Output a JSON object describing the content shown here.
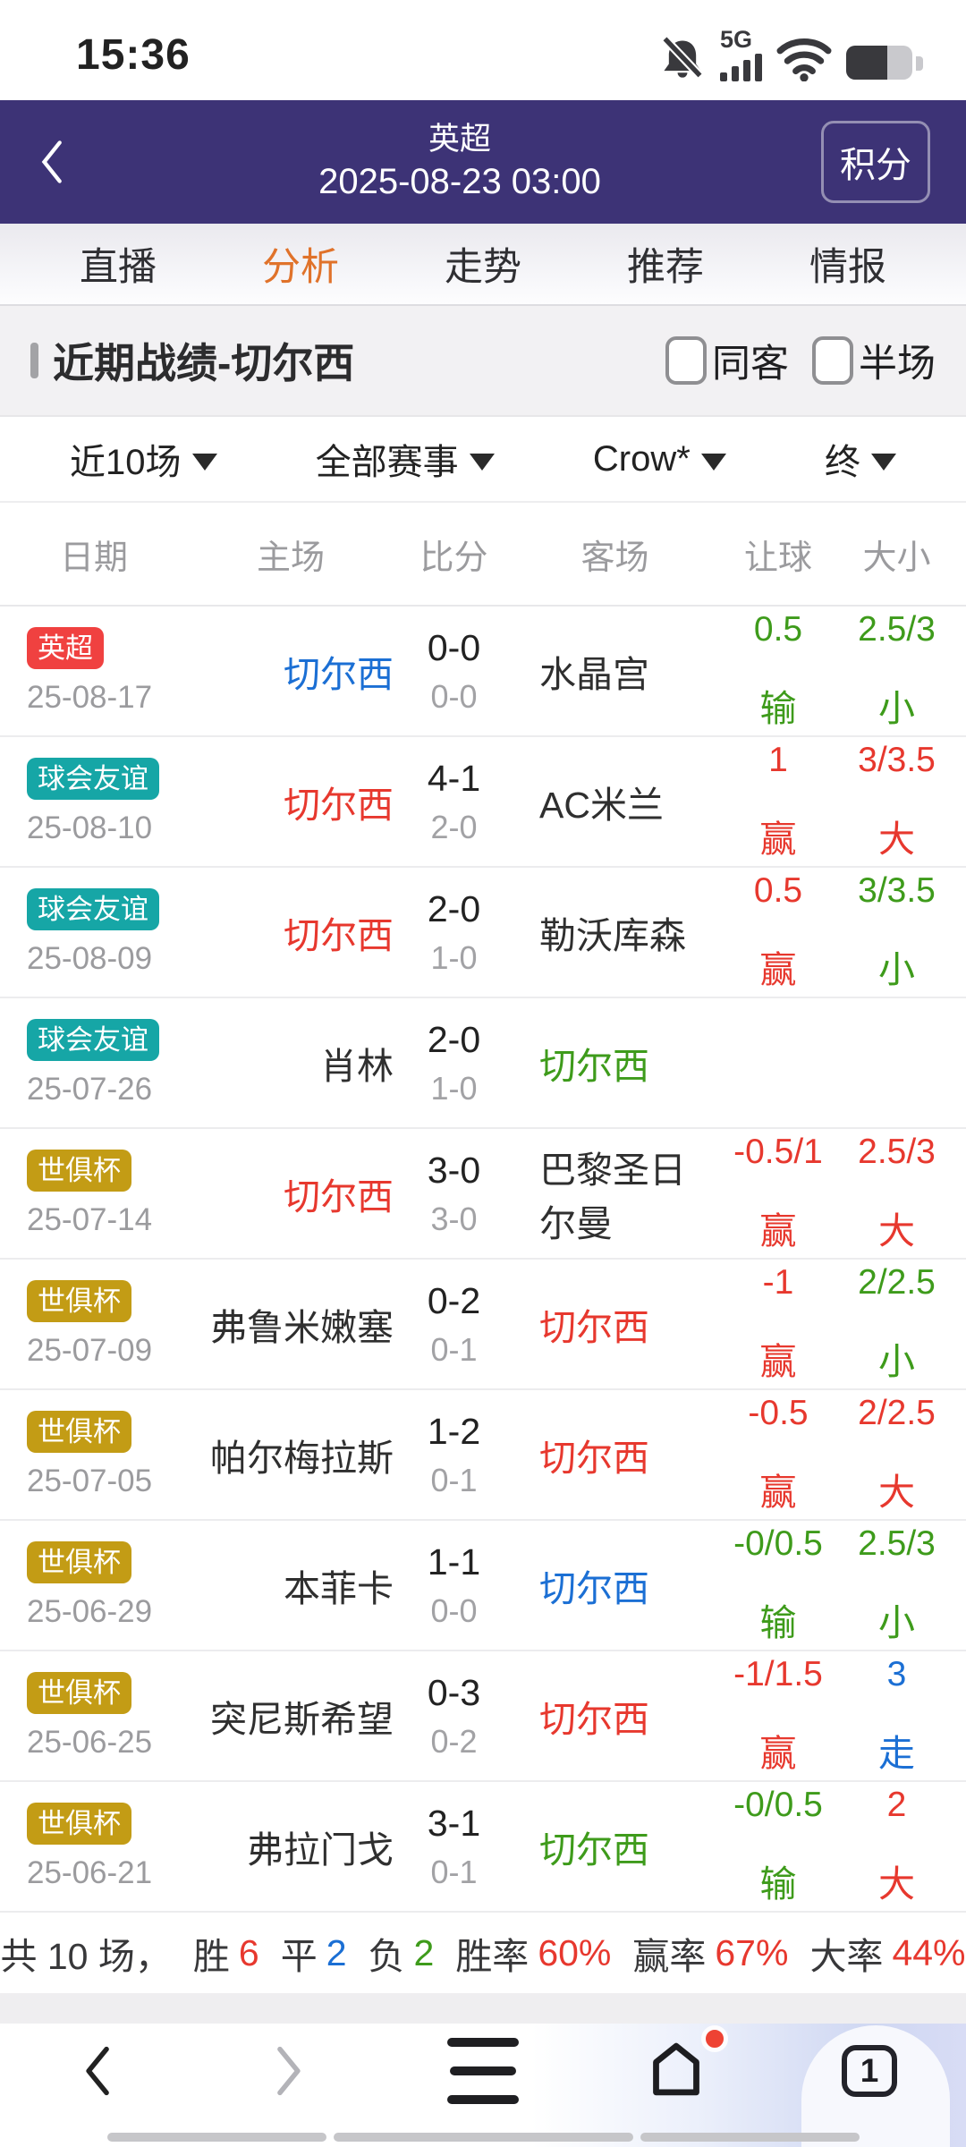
{
  "colors": {
    "red": "#e7382e",
    "blue": "#1b6fd4",
    "green": "#3e9b1b",
    "dark": "#2f2f2f",
    "grey": "#9b9b9e",
    "teal": "#16a6a6",
    "gold": "#c39c15",
    "badge_red": "#f04140",
    "accent_orange": "#e0722a",
    "header_purple": "#3d3376"
  },
  "status_bar": {
    "time": "15:36",
    "network_label": "5G"
  },
  "header": {
    "title": "英超",
    "datetime": "2025-08-23 03:00",
    "standings_button": "积分"
  },
  "tabs": {
    "items": [
      "直播",
      "分析",
      "走势",
      "推荐",
      "情报"
    ],
    "active_index": 1
  },
  "section": {
    "title": "近期战绩-切尔西",
    "checkbox_labels": [
      "同客",
      "半场"
    ]
  },
  "filters": [
    "近10场",
    "全部赛事",
    "Crow*",
    "终"
  ],
  "table": {
    "headers": [
      "日期",
      "主场",
      "比分",
      "客场",
      "让球",
      "大小"
    ],
    "rows": [
      {
        "league": "英超",
        "league_color": "badge_red",
        "date": "25-08-17",
        "home": "切尔西",
        "home_color": "blue",
        "score": "0-0",
        "half_score": "0-0",
        "away": "水晶宫",
        "away_color": "dark",
        "handicap": "0.5",
        "handicap_result": "输",
        "handicap_color": "green",
        "ou": "2.5/3",
        "ou_result": "小",
        "ou_color": "green"
      },
      {
        "league": "球会友谊",
        "league_color": "teal",
        "date": "25-08-10",
        "home": "切尔西",
        "home_color": "red",
        "score": "4-1",
        "half_score": "2-0",
        "away": "AC米兰",
        "away_color": "dark",
        "handicap": "1",
        "handicap_result": "赢",
        "handicap_color": "red",
        "ou": "3/3.5",
        "ou_result": "大",
        "ou_color": "red"
      },
      {
        "league": "球会友谊",
        "league_color": "teal",
        "date": "25-08-09",
        "home": "切尔西",
        "home_color": "red",
        "score": "2-0",
        "half_score": "1-0",
        "away": "勒沃库森",
        "away_color": "dark",
        "handicap": "0.5",
        "handicap_result": "赢",
        "handicap_color": "red",
        "ou": "3/3.5",
        "ou_result": "小",
        "ou_color": "green"
      },
      {
        "league": "球会友谊",
        "league_color": "teal",
        "date": "25-07-26",
        "home": "肖林",
        "home_color": "dark",
        "score": "2-0",
        "half_score": "1-0",
        "away": "切尔西",
        "away_color": "green",
        "handicap": "",
        "handicap_result": "",
        "handicap_color": "dark",
        "ou": "",
        "ou_result": "",
        "ou_color": "dark"
      },
      {
        "league": "世俱杯",
        "league_color": "gold",
        "date": "25-07-14",
        "home": "切尔西",
        "home_color": "red",
        "score": "3-0",
        "half_score": "3-0",
        "away": "巴黎圣日尔曼",
        "away_color": "dark",
        "handicap": "-0.5/1",
        "handicap_result": "赢",
        "handicap_color": "red",
        "ou": "2.5/3",
        "ou_result": "大",
        "ou_color": "red"
      },
      {
        "league": "世俱杯",
        "league_color": "gold",
        "date": "25-07-09",
        "home": "弗鲁米嫩塞",
        "home_color": "dark",
        "score": "0-2",
        "half_score": "0-1",
        "away": "切尔西",
        "away_color": "red",
        "handicap": "-1",
        "handicap_result": "赢",
        "handicap_color": "red",
        "ou": "2/2.5",
        "ou_result": "小",
        "ou_color": "green"
      },
      {
        "league": "世俱杯",
        "league_color": "gold",
        "date": "25-07-05",
        "home": "帕尔梅拉斯",
        "home_color": "dark",
        "score": "1-2",
        "half_score": "0-1",
        "away": "切尔西",
        "away_color": "red",
        "handicap": "-0.5",
        "handicap_result": "赢",
        "handicap_color": "red",
        "ou": "2/2.5",
        "ou_result": "大",
        "ou_color": "red"
      },
      {
        "league": "世俱杯",
        "league_color": "gold",
        "date": "25-06-29",
        "home": "本菲卡",
        "home_color": "dark",
        "score": "1-1",
        "half_score": "0-0",
        "away": "切尔西",
        "away_color": "blue",
        "handicap": "-0/0.5",
        "handicap_result": "输",
        "handicap_color": "green",
        "ou": "2.5/3",
        "ou_result": "小",
        "ou_color": "green"
      },
      {
        "league": "世俱杯",
        "league_color": "gold",
        "date": "25-06-25",
        "home": "突尼斯希望",
        "home_color": "dark",
        "score": "0-3",
        "half_score": "0-2",
        "away": "切尔西",
        "away_color": "red",
        "handicap": "-1/1.5",
        "handicap_result": "赢",
        "handicap_color": "red",
        "ou": "3",
        "ou_result": "走",
        "ou_color": "blue"
      },
      {
        "league": "世俱杯",
        "league_color": "gold",
        "date": "25-06-21",
        "home": "弗拉门戈",
        "home_color": "dark",
        "score": "3-1",
        "half_score": "0-1",
        "away": "切尔西",
        "away_color": "green",
        "handicap": "-0/0.5",
        "handicap_result": "输",
        "handicap_color": "green",
        "ou": "2",
        "ou_result": "大",
        "ou_color": "red"
      }
    ]
  },
  "summary": {
    "segments": [
      {
        "label": "共 10 场，",
        "value": "",
        "value_color": "dark"
      },
      {
        "label": "胜",
        "value": "6",
        "value_color": "red"
      },
      {
        "label": "平",
        "value": "2",
        "value_color": "blue"
      },
      {
        "label": "负",
        "value": "2",
        "value_color": "green"
      },
      {
        "label": "胜率",
        "value": "60%",
        "value_color": "red"
      },
      {
        "label": "赢率",
        "value": "67%",
        "value_color": "red"
      },
      {
        "label": "大率",
        "value": "44%",
        "value_color": "red"
      }
    ]
  },
  "bottom_nav": {
    "tab_count": "1"
  }
}
